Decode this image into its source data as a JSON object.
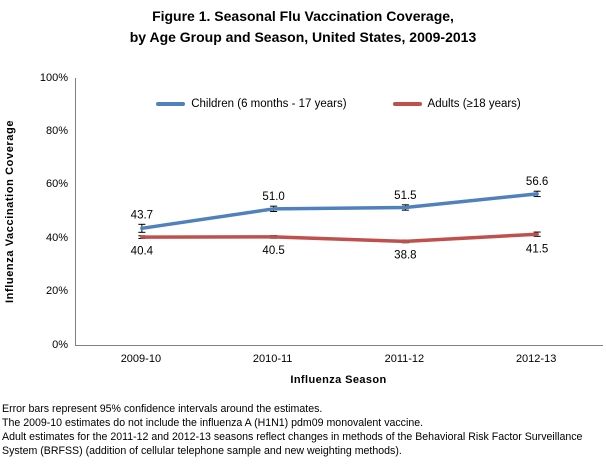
{
  "title": {
    "line1": "Figure 1. Seasonal Flu Vaccination Coverage,",
    "line2": "by Age Group and Season, United States, 2009-2013"
  },
  "chart_data": {
    "type": "line",
    "title": "Figure 1. Seasonal Flu Vaccination Coverage, by Age Group and Season, United States, 2009-2013",
    "categories": [
      "2009-10",
      "2010-11",
      "2011-12",
      "2012-13"
    ],
    "series": [
      {
        "name": "Children (6 months - 17 years)",
        "color": "#4F81BD",
        "values": [
          43.7,
          51.0,
          51.5,
          56.6
        ],
        "error_95ci": [
          1.5,
          1.0,
          1.0,
          1.0
        ],
        "label_position": "above"
      },
      {
        "name": "Adults (≥18 years)",
        "color": "#C0504D",
        "values": [
          40.4,
          40.5,
          38.8,
          41.5
        ],
        "error_95ci": [
          0.5,
          0.5,
          0.5,
          0.8
        ],
        "label_position": "below"
      }
    ],
    "xlabel": "Influenza Season",
    "ylabel": "Influenza Vaccination Coverage",
    "ylim": [
      0,
      100
    ],
    "yticks": [
      "0%",
      "20%",
      "40%",
      "60%",
      "80%",
      "100%"
    ],
    "grid": false,
    "legend_position": "top-center-inside",
    "axis_color": "#808080",
    "error_bar_color": "#000000"
  },
  "footnotes": [
    "Error bars represent 95% confidence intervals around the estimates.",
    "The 2009-10 estimates do not include the  influenza A (H1N1) pdm09 monovalent vaccine.",
    "Adult estimates for the 2011-12 and 2012-13 seasons reflect changes in methods of the Behavioral Risk Factor Surveillance System (BRFSS) (addition of cellular telephone sample and new weighting methods)."
  ]
}
